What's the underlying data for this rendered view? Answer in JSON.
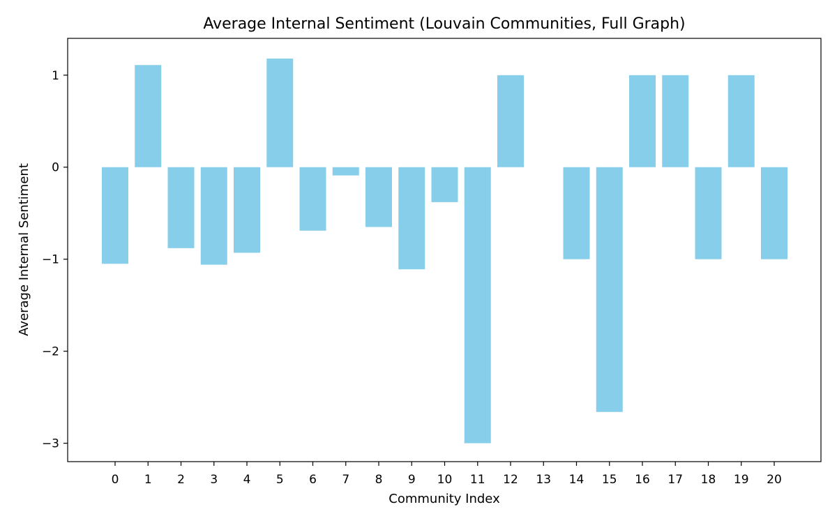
{
  "chart_data": {
    "type": "bar",
    "title": "Average Internal Sentiment (Louvain Communities, Full Graph)",
    "xlabel": "Community Index",
    "ylabel": "Average Internal Sentiment",
    "categories": [
      "0",
      "1",
      "2",
      "3",
      "4",
      "5",
      "6",
      "7",
      "8",
      "9",
      "10",
      "11",
      "12",
      "13",
      "14",
      "15",
      "16",
      "17",
      "18",
      "19",
      "20"
    ],
    "values": [
      -1.05,
      1.11,
      -0.88,
      -1.06,
      -0.93,
      1.18,
      -0.69,
      -0.09,
      -0.65,
      -1.11,
      -0.38,
      -3.0,
      1.0,
      0.0,
      -1.0,
      -2.66,
      1.0,
      1.0,
      -1.0,
      1.0,
      -1.0
    ],
    "ylim": [
      -3.2,
      1.4
    ],
    "yticks": [
      1,
      0,
      -1,
      -2,
      -3
    ],
    "ytick_labels": [
      "1",
      "0",
      "−1",
      "−2",
      "−3"
    ],
    "grid": false,
    "bar_color": "#87ceeb"
  }
}
